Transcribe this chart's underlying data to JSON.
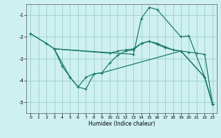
{
  "title": "",
  "xlabel": "Humidex (Indice chaleur)",
  "bg_color": "#cff0f0",
  "grid_color": "#99cccc",
  "line_color": "#1a7a6a",
  "xlim": [
    -0.5,
    23.5
  ],
  "ylim": [
    -5.5,
    -0.5
  ],
  "yticks": [
    -5,
    -4,
    -3,
    -2,
    -1
  ],
  "xticks": [
    0,
    1,
    2,
    3,
    4,
    5,
    6,
    7,
    8,
    9,
    10,
    11,
    12,
    13,
    14,
    15,
    16,
    17,
    18,
    19,
    20,
    21,
    22,
    23
  ],
  "line1_x": [
    0,
    2,
    3,
    10,
    11,
    12,
    13,
    14,
    15,
    16,
    17,
    18,
    19,
    20,
    21,
    22,
    23
  ],
  "line1_y": [
    -1.85,
    -2.3,
    -2.55,
    -2.75,
    -2.65,
    -2.6,
    -2.55,
    -2.3,
    -2.2,
    -2.35,
    -2.5,
    -2.6,
    -2.65,
    -2.7,
    -2.75,
    -2.8,
    -5.1
  ],
  "line2_x": [
    0,
    2,
    3,
    13,
    14,
    15,
    16,
    19,
    20,
    22,
    23
  ],
  "line2_y": [
    -1.85,
    -2.3,
    -2.55,
    -2.8,
    -1.15,
    -0.65,
    -0.75,
    -2.0,
    -1.95,
    -3.85,
    -5.1
  ],
  "line3_x": [
    3,
    4,
    5,
    6,
    7,
    8,
    9,
    10,
    11,
    12,
    13,
    14,
    15,
    16,
    17,
    18,
    19,
    22,
    23
  ],
  "line3_y": [
    -2.55,
    -3.35,
    -3.85,
    -4.3,
    -3.85,
    -3.7,
    -3.65,
    -3.2,
    -2.85,
    -2.65,
    -2.6,
    -2.3,
    -2.2,
    -2.3,
    -2.45,
    -2.6,
    -2.65,
    -3.85,
    -5.1
  ],
  "line4_x": [
    3,
    5,
    6,
    7,
    8,
    9,
    19,
    22,
    23
  ],
  "line4_y": [
    -2.55,
    -3.85,
    -4.3,
    -4.4,
    -3.7,
    -3.65,
    -2.65,
    -3.85,
    -5.1
  ]
}
